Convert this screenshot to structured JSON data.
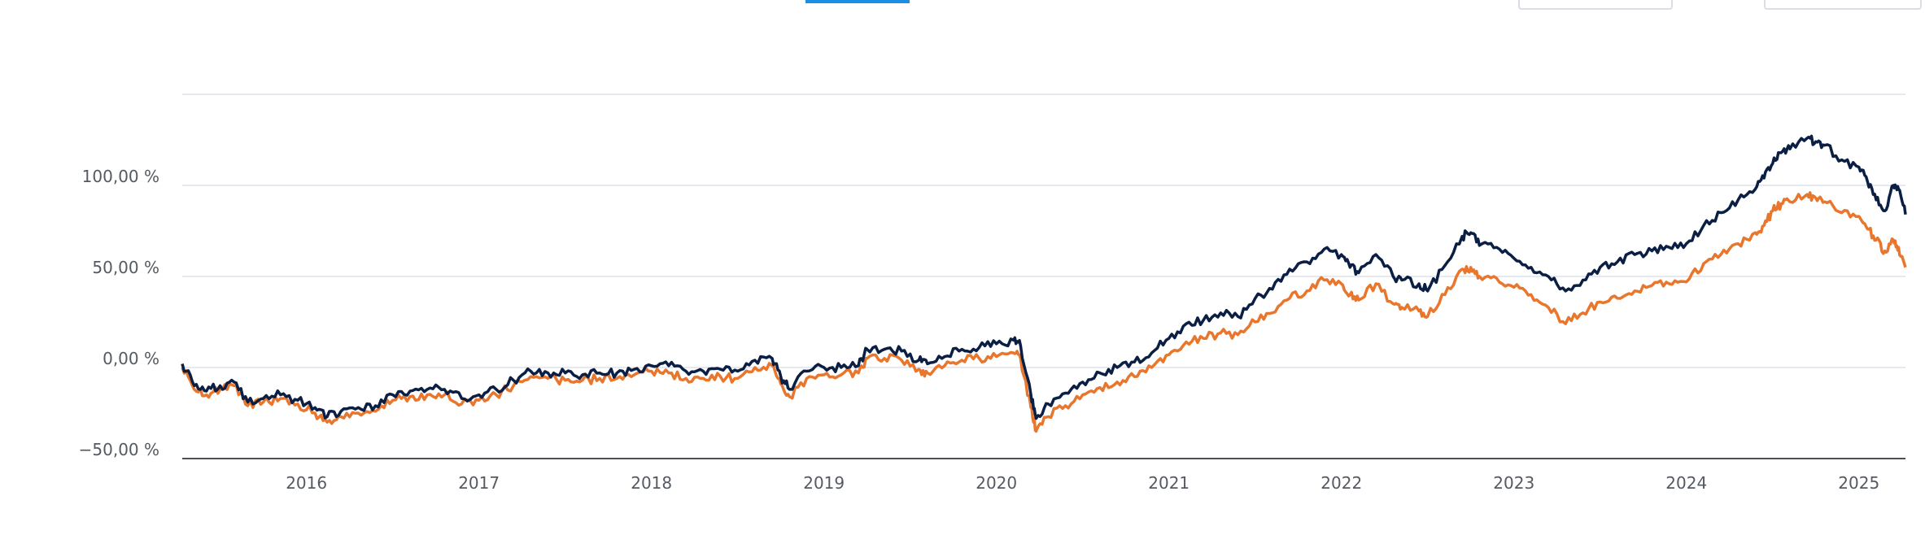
{
  "colors": {
    "series_primary": "#0b1f45",
    "series_secondary": "#e8762c",
    "accent_tab": "#1a8fe3",
    "grid": "#dde2ea",
    "baseline": "#4a4f57",
    "tick_text": "#555a62"
  },
  "chart_data": {
    "type": "line",
    "title": "",
    "xlabel": "",
    "ylabel": "",
    "ylim": [
      -50,
      150
    ],
    "y_ticks": [
      {
        "value": 100,
        "label": "100,00 %"
      },
      {
        "value": 50,
        "label": "50,00 %"
      },
      {
        "value": 0,
        "label": "0,00 %"
      },
      {
        "value": -50,
        "label": "−50,00 %"
      }
    ],
    "x_ticks": [
      "2016",
      "2017",
      "2018",
      "2019",
      "2020",
      "2021",
      "2022",
      "2023",
      "2024",
      "2025"
    ],
    "xlim": [
      2015.28,
      2025.27
    ],
    "grid": true,
    "legend": "none",
    "series": [
      {
        "color": "#0b1f45",
        "points": [
          [
            2015.28,
            2
          ],
          [
            2015.35,
            -10
          ],
          [
            2015.42,
            -13
          ],
          [
            2015.5,
            -10
          ],
          [
            2015.58,
            -8
          ],
          [
            2015.66,
            -19
          ],
          [
            2015.75,
            -17
          ],
          [
            2015.85,
            -15
          ],
          [
            2015.95,
            -18
          ],
          [
            2016.05,
            -22
          ],
          [
            2016.12,
            -27
          ],
          [
            2016.2,
            -24
          ],
          [
            2016.3,
            -22
          ],
          [
            2016.4,
            -21
          ],
          [
            2016.5,
            -15
          ],
          [
            2016.6,
            -13
          ],
          [
            2016.7,
            -12
          ],
          [
            2016.8,
            -12
          ],
          [
            2016.9,
            -17
          ],
          [
            2017.0,
            -15
          ],
          [
            2017.1,
            -12
          ],
          [
            2017.2,
            -7
          ],
          [
            2017.3,
            -2
          ],
          [
            2017.4,
            -3
          ],
          [
            2017.5,
            -3
          ],
          [
            2017.6,
            -4
          ],
          [
            2017.7,
            -3
          ],
          [
            2017.8,
            -3
          ],
          [
            2017.9,
            -1
          ],
          [
            2018.0,
            1
          ],
          [
            2018.1,
            1
          ],
          [
            2018.2,
            -2
          ],
          [
            2018.3,
            -2
          ],
          [
            2018.4,
            -1
          ],
          [
            2018.5,
            -2
          ],
          [
            2018.6,
            4
          ],
          [
            2018.7,
            5
          ],
          [
            2018.75,
            -5
          ],
          [
            2018.8,
            -12
          ],
          [
            2018.9,
            -2
          ],
          [
            2019.0,
            0
          ],
          [
            2019.1,
            0
          ],
          [
            2019.2,
            1
          ],
          [
            2019.25,
            10
          ],
          [
            2019.35,
            10
          ],
          [
            2019.45,
            9
          ],
          [
            2019.55,
            4
          ],
          [
            2019.6,
            2
          ],
          [
            2019.7,
            6
          ],
          [
            2019.8,
            10
          ],
          [
            2019.9,
            11
          ],
          [
            2020.0,
            13
          ],
          [
            2020.1,
            15
          ],
          [
            2020.14,
            12
          ],
          [
            2020.2,
            -15
          ],
          [
            2020.23,
            -28
          ],
          [
            2020.3,
            -20
          ],
          [
            2020.4,
            -14
          ],
          [
            2020.5,
            -8
          ],
          [
            2020.6,
            -3
          ],
          [
            2020.7,
            0
          ],
          [
            2020.8,
            3
          ],
          [
            2020.9,
            8
          ],
          [
            2021.0,
            16
          ],
          [
            2021.1,
            24
          ],
          [
            2021.2,
            26
          ],
          [
            2021.3,
            30
          ],
          [
            2021.4,
            28
          ],
          [
            2021.5,
            38
          ],
          [
            2021.6,
            43
          ],
          [
            2021.7,
            54
          ],
          [
            2021.8,
            58
          ],
          [
            2021.9,
            65
          ],
          [
            2022.0,
            62
          ],
          [
            2022.05,
            55
          ],
          [
            2022.1,
            52
          ],
          [
            2022.2,
            62
          ],
          [
            2022.3,
            50
          ],
          [
            2022.35,
            48
          ],
          [
            2022.45,
            46
          ],
          [
            2022.5,
            42
          ],
          [
            2022.6,
            56
          ],
          [
            2022.7,
            72
          ],
          [
            2022.75,
            74
          ],
          [
            2022.8,
            67
          ],
          [
            2022.9,
            66
          ],
          [
            2023.0,
            60
          ],
          [
            2023.1,
            55
          ],
          [
            2023.2,
            50
          ],
          [
            2023.3,
            42
          ],
          [
            2023.4,
            48
          ],
          [
            2023.5,
            55
          ],
          [
            2023.6,
            58
          ],
          [
            2023.7,
            62
          ],
          [
            2023.8,
            64
          ],
          [
            2023.9,
            66
          ],
          [
            2024.0,
            68
          ],
          [
            2024.1,
            78
          ],
          [
            2024.2,
            85
          ],
          [
            2024.3,
            92
          ],
          [
            2024.4,
            98
          ],
          [
            2024.45,
            104
          ],
          [
            2024.5,
            112
          ],
          [
            2024.55,
            118
          ],
          [
            2024.6,
            120
          ],
          [
            2024.7,
            126
          ],
          [
            2024.75,
            124
          ],
          [
            2024.8,
            122
          ],
          [
            2024.9,
            114
          ],
          [
            2025.0,
            110
          ],
          [
            2025.05,
            102
          ],
          [
            2025.1,
            92
          ],
          [
            2025.15,
            86
          ],
          [
            2025.2,
            100
          ],
          [
            2025.23,
            98
          ],
          [
            2025.27,
            84
          ]
        ]
      },
      {
        "color": "#e8762c",
        "points": [
          [
            2015.28,
            0
          ],
          [
            2015.35,
            -12
          ],
          [
            2015.42,
            -15
          ],
          [
            2015.5,
            -12
          ],
          [
            2015.58,
            -10
          ],
          [
            2015.66,
            -21
          ],
          [
            2015.75,
            -19
          ],
          [
            2015.85,
            -17
          ],
          [
            2015.95,
            -20
          ],
          [
            2016.05,
            -25
          ],
          [
            2016.12,
            -30
          ],
          [
            2016.2,
            -27
          ],
          [
            2016.3,
            -25
          ],
          [
            2016.4,
            -24
          ],
          [
            2016.5,
            -18
          ],
          [
            2016.6,
            -16
          ],
          [
            2016.7,
            -15
          ],
          [
            2016.8,
            -15
          ],
          [
            2016.9,
            -20
          ],
          [
            2017.0,
            -18
          ],
          [
            2017.1,
            -15
          ],
          [
            2017.2,
            -10
          ],
          [
            2017.3,
            -5
          ],
          [
            2017.4,
            -6
          ],
          [
            2017.5,
            -7
          ],
          [
            2017.6,
            -7
          ],
          [
            2017.7,
            -6
          ],
          [
            2017.8,
            -6
          ],
          [
            2017.9,
            -4
          ],
          [
            2018.0,
            -2
          ],
          [
            2018.1,
            -3
          ],
          [
            2018.2,
            -6
          ],
          [
            2018.3,
            -6
          ],
          [
            2018.4,
            -5
          ],
          [
            2018.5,
            -6
          ],
          [
            2018.6,
            0
          ],
          [
            2018.7,
            1
          ],
          [
            2018.75,
            -9
          ],
          [
            2018.8,
            -16
          ],
          [
            2018.9,
            -6
          ],
          [
            2019.0,
            -4
          ],
          [
            2019.1,
            -4
          ],
          [
            2019.2,
            -3
          ],
          [
            2019.25,
            5
          ],
          [
            2019.35,
            5
          ],
          [
            2019.45,
            4
          ],
          [
            2019.55,
            -1
          ],
          [
            2019.6,
            -3
          ],
          [
            2019.7,
            1
          ],
          [
            2019.8,
            4
          ],
          [
            2019.9,
            5
          ],
          [
            2020.0,
            6
          ],
          [
            2020.1,
            8
          ],
          [
            2020.14,
            5
          ],
          [
            2020.2,
            -22
          ],
          [
            2020.23,
            -35
          ],
          [
            2020.3,
            -27
          ],
          [
            2020.4,
            -21
          ],
          [
            2020.5,
            -15
          ],
          [
            2020.6,
            -11
          ],
          [
            2020.7,
            -8
          ],
          [
            2020.8,
            -5
          ],
          [
            2020.9,
            0
          ],
          [
            2021.0,
            7
          ],
          [
            2021.1,
            14
          ],
          [
            2021.2,
            16
          ],
          [
            2021.3,
            19
          ],
          [
            2021.4,
            18
          ],
          [
            2021.5,
            25
          ],
          [
            2021.6,
            30
          ],
          [
            2021.7,
            38
          ],
          [
            2021.8,
            42
          ],
          [
            2021.9,
            48
          ],
          [
            2022.0,
            46
          ],
          [
            2022.05,
            40
          ],
          [
            2022.1,
            37
          ],
          [
            2022.2,
            46
          ],
          [
            2022.3,
            35
          ],
          [
            2022.35,
            33
          ],
          [
            2022.45,
            31
          ],
          [
            2022.5,
            28
          ],
          [
            2022.6,
            40
          ],
          [
            2022.7,
            54
          ],
          [
            2022.75,
            55
          ],
          [
            2022.8,
            50
          ],
          [
            2022.9,
            49
          ],
          [
            2023.0,
            44
          ],
          [
            2023.1,
            40
          ],
          [
            2023.2,
            33
          ],
          [
            2023.3,
            24
          ],
          [
            2023.4,
            30
          ],
          [
            2023.5,
            36
          ],
          [
            2023.6,
            38
          ],
          [
            2023.7,
            42
          ],
          [
            2023.8,
            45
          ],
          [
            2023.9,
            46
          ],
          [
            2024.0,
            47
          ],
          [
            2024.1,
            57
          ],
          [
            2024.2,
            62
          ],
          [
            2024.3,
            68
          ],
          [
            2024.4,
            74
          ],
          [
            2024.45,
            78
          ],
          [
            2024.5,
            86
          ],
          [
            2024.55,
            90
          ],
          [
            2024.6,
            91
          ],
          [
            2024.7,
            95
          ],
          [
            2024.75,
            93
          ],
          [
            2024.8,
            91
          ],
          [
            2024.9,
            85
          ],
          [
            2025.0,
            83
          ],
          [
            2025.05,
            76
          ],
          [
            2025.1,
            70
          ],
          [
            2025.15,
            64
          ],
          [
            2025.2,
            70
          ],
          [
            2025.23,
            66
          ],
          [
            2025.27,
            55
          ]
        ]
      }
    ]
  }
}
